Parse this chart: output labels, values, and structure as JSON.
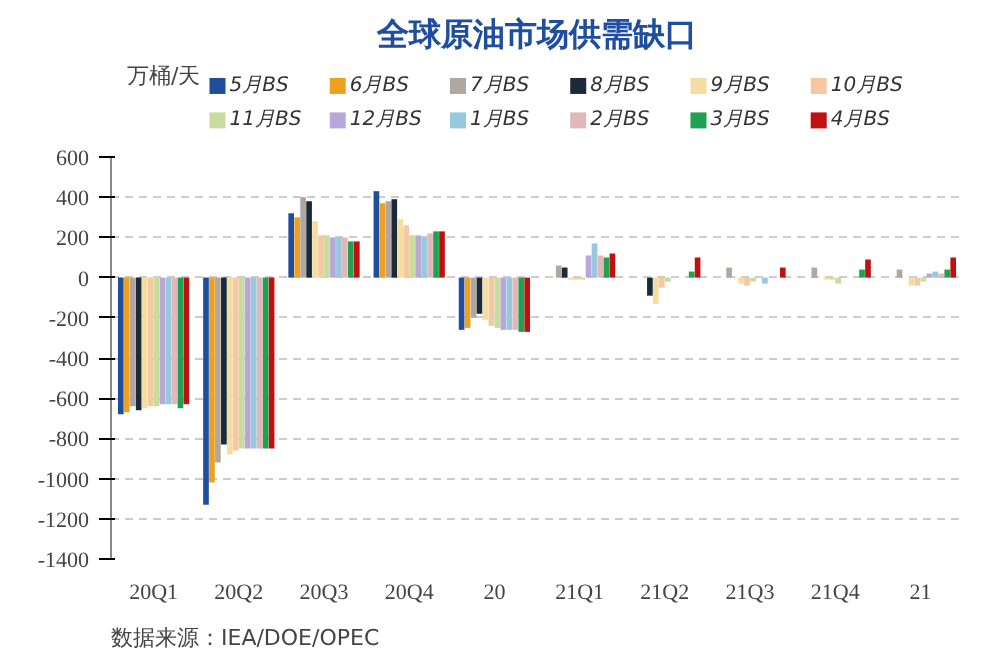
{
  "chart_data": {
    "type": "bar",
    "title": "全球原油市场供需缺口",
    "ylabel": "万桶/天",
    "categories": [
      "20Q1",
      "20Q2",
      "20Q3",
      "20Q4",
      "20",
      "21Q1",
      "21Q2",
      "21Q3",
      "21Q4",
      "21"
    ],
    "series": [
      {
        "name": "5月BS",
        "color": "#1f4e9c",
        "values": [
          -680,
          -1130,
          320,
          430,
          -260,
          null,
          null,
          null,
          null,
          null
        ]
      },
      {
        "name": "6月BS",
        "color": "#f0a020",
        "values": [
          -670,
          -1020,
          300,
          370,
          -250,
          null,
          null,
          null,
          null,
          null
        ]
      },
      {
        "name": "7月BS",
        "color": "#b0a8a0",
        "values": [
          -640,
          -920,
          400,
          380,
          -200,
          60,
          null,
          50,
          50,
          40
        ]
      },
      {
        "name": "8月BS",
        "color": "#1a2a3a",
        "values": [
          -660,
          -830,
          380,
          390,
          -180,
          50,
          -90,
          null,
          null,
          null
        ]
      },
      {
        "name": "9月BS",
        "color": "#f5dca0",
        "values": [
          -650,
          -880,
          280,
          290,
          -210,
          -10,
          -130,
          -30,
          -10,
          -40
        ]
      },
      {
        "name": "10月BS",
        "color": "#f5c8a0",
        "values": [
          -640,
          -860,
          210,
          260,
          -240,
          -10,
          -50,
          -40,
          -10,
          -40
        ]
      },
      {
        "name": "11月BS",
        "color": "#c8dca0",
        "values": [
          -640,
          -850,
          210,
          210,
          -250,
          -10,
          -20,
          -20,
          -30,
          -20
        ]
      },
      {
        "name": "12月BS",
        "color": "#b8a8d8",
        "values": [
          -630,
          -850,
          200,
          210,
          -260,
          110,
          null,
          null,
          null,
          20
        ]
      },
      {
        "name": "1月BS",
        "color": "#98c8e0",
        "values": [
          -630,
          -850,
          200,
          200,
          -260,
          170,
          null,
          -30,
          null,
          30
        ]
      },
      {
        "name": "2月BS",
        "color": "#e0b8b8",
        "values": [
          -630,
          -850,
          200,
          220,
          -260,
          110,
          null,
          null,
          null,
          20
        ]
      },
      {
        "name": "3月BS",
        "color": "#20a050",
        "values": [
          -650,
          -850,
          180,
          230,
          -270,
          100,
          30,
          null,
          40,
          40
        ]
      },
      {
        "name": "4月BS",
        "color": "#c01010",
        "values": [
          -630,
          -850,
          180,
          230,
          -270,
          120,
          100,
          50,
          90,
          100
        ]
      }
    ],
    "ylim": [
      -1400,
      600
    ],
    "yticks": [
      -1400,
      -1200,
      -1000,
      -800,
      -600,
      -400,
      -200,
      0,
      200,
      400,
      600
    ],
    "grid": "y",
    "legend": "top",
    "annotations": [
      "数据来源：IEA/DOE/OPEC"
    ]
  }
}
